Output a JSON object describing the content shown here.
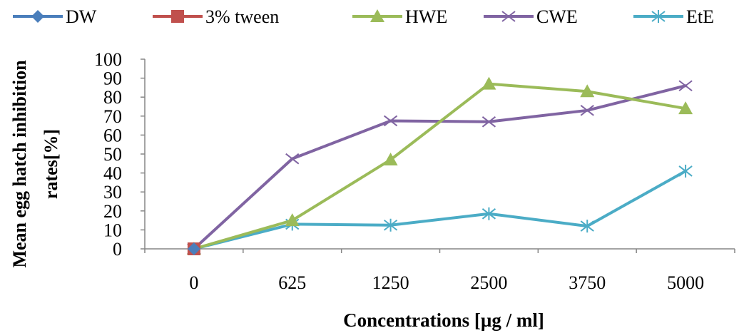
{
  "chart_data": {
    "type": "line",
    "title": "",
    "xlabel": "Concentrations [µg / ml]",
    "ylabel_lines": [
      "Mean egg hatch inhibition",
      "rates[%]"
    ],
    "categories": [
      "0",
      "625",
      "1250",
      "2500",
      "3750",
      "5000"
    ],
    "ylim": [
      0,
      100
    ],
    "yticks": [
      "0",
      "10",
      "20",
      "30",
      "40",
      "50",
      "60",
      "70",
      "80",
      "90",
      "100"
    ],
    "grid": false,
    "legend_position": "top",
    "series": [
      {
        "name": "DW",
        "color": "#4a7ebb",
        "marker": "diamond",
        "values": [
          0,
          null,
          null,
          null,
          null,
          null
        ]
      },
      {
        "name": "3% tween",
        "color": "#c0504d",
        "marker": "square",
        "values": [
          0,
          null,
          null,
          null,
          null,
          null
        ]
      },
      {
        "name": "HWE",
        "color": "#9bbb59",
        "marker": "triangle",
        "values": [
          0,
          15,
          47,
          87,
          83,
          74
        ]
      },
      {
        "name": "CWE",
        "color": "#8064a2",
        "marker": "x",
        "values": [
          0,
          47.5,
          67.5,
          67,
          73,
          86
        ]
      },
      {
        "name": "EtE",
        "color": "#4bacc6",
        "marker": "asterisk",
        "values": [
          0,
          13,
          12.5,
          18.5,
          12,
          41
        ]
      }
    ]
  }
}
